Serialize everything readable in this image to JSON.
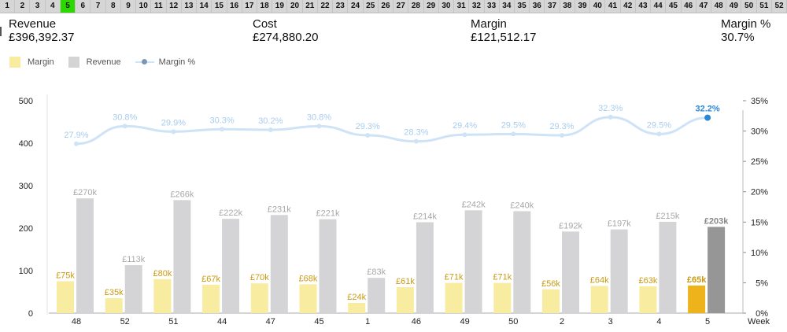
{
  "week_selector": {
    "weeks": [
      "1",
      "2",
      "3",
      "4",
      "5",
      "6",
      "7",
      "8",
      "9",
      "10",
      "11",
      "12",
      "13",
      "14",
      "15",
      "16",
      "17",
      "18",
      "19",
      "20",
      "21",
      "22",
      "23",
      "24",
      "25",
      "26",
      "27",
      "28",
      "29",
      "30",
      "31",
      "32",
      "33",
      "34",
      "35",
      "36",
      "37",
      "38",
      "39",
      "40",
      "41",
      "42",
      "43",
      "44",
      "45",
      "46",
      "47",
      "48",
      "49",
      "50",
      "51",
      "52"
    ],
    "selected": "5",
    "selected_color": "#2bd900"
  },
  "kpis": {
    "revenue": {
      "label": "Revenue",
      "value": "£396,392.37"
    },
    "cost": {
      "label": "Cost",
      "value": "£274,880.20"
    },
    "margin": {
      "label": "Margin",
      "value": "£121,512.17"
    },
    "margin_pct": {
      "label": "Margin %",
      "value": "30.7%"
    }
  },
  "legend": {
    "margin": "Margin",
    "revenue": "Revenue",
    "margin_pct": "Margin %"
  },
  "colors": {
    "margin_bar": "#f7eca0",
    "margin_bar_selected": "#eeb21a",
    "revenue_bar": "#d4d4d6",
    "revenue_bar_selected": "#969696",
    "margin_label": "#c99a10",
    "revenue_label": "#a8a8a8",
    "pct_line": "#cfe3f7",
    "pct_label": "#a7cdee",
    "pct_selected": "#2a87d8",
    "axis_text": "#222222"
  },
  "chart_data": {
    "type": "bar",
    "categories": [
      "48",
      "52",
      "51",
      "44",
      "47",
      "45",
      "1",
      "46",
      "49",
      "50",
      "2",
      "3",
      "4",
      "5"
    ],
    "xlabel": "Week",
    "ylim": [
      0,
      500
    ],
    "y_ticks": [
      0,
      100,
      200,
      300,
      400,
      500
    ],
    "y2lim": [
      0,
      35
    ],
    "y2_ticks": [
      "0%",
      "5%",
      "10%",
      "15%",
      "20%",
      "25%",
      "30%",
      "35%"
    ],
    "selected_category": "5",
    "series": [
      {
        "name": "Margin",
        "type": "bar",
        "values": [
          75,
          35,
          80,
          67,
          70,
          68,
          24,
          61,
          71,
          71,
          56,
          64,
          63,
          65
        ],
        "labels": [
          "£75k",
          "£35k",
          "£80k",
          "£67k",
          "£70k",
          "£68k",
          "£24k",
          "£61k",
          "£71k",
          "£71k",
          "£56k",
          "£64k",
          "£63k",
          "£65k"
        ]
      },
      {
        "name": "Revenue",
        "type": "bar",
        "values": [
          270,
          113,
          266,
          222,
          231,
          221,
          83,
          214,
          242,
          240,
          192,
          197,
          215,
          203
        ],
        "labels": [
          "£270k",
          "£113k",
          "£266k",
          "£222k",
          "£231k",
          "£221k",
          "£83k",
          "£214k",
          "£242k",
          "£240k",
          "£192k",
          "£197k",
          "£215k",
          "£203k"
        ]
      },
      {
        "name": "Margin %",
        "type": "line",
        "axis": "right",
        "values": [
          27.9,
          30.8,
          29.9,
          30.3,
          30.2,
          30.8,
          29.3,
          28.3,
          29.4,
          29.5,
          29.3,
          32.3,
          29.5,
          32.2
        ],
        "labels": [
          "27.9%",
          "30.8%",
          "29.9%",
          "30.3%",
          "30.2%",
          "30.8%",
          "29.3%",
          "28.3%",
          "29.4%",
          "29.5%",
          "29.3%",
          "32.3%",
          "29.5%",
          "32.2%"
        ]
      }
    ]
  }
}
